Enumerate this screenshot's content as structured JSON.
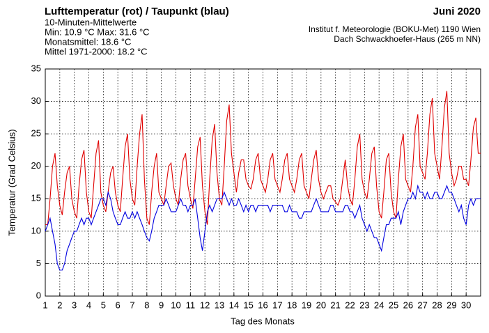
{
  "chart_data": {
    "type": "line",
    "title": "Lufttemperatur (rot) / Taupunkt (blau)",
    "subtitle": "10-Minuten-Mittelwerte",
    "stats": [
      "Min:  10.9 °C   Max:  31.6 °C",
      "Monatsmittel:  18.6 °C",
      "Mittel 1971-2000:  18.2 °C"
    ],
    "period": "Juni 2020",
    "source": [
      "Institut f. Meteorologie (BOKU-Met) 1190 Wien",
      "Dach Schwackhoefer-Haus (265 m NN)"
    ],
    "ylabel": "Temperatur (Grad Celsius)",
    "xlabel": "Tag des Monats",
    "xlim": [
      1,
      31
    ],
    "ylim": [
      0,
      35
    ],
    "xticks": [
      1,
      2,
      3,
      4,
      5,
      6,
      7,
      8,
      9,
      10,
      11,
      12,
      13,
      14,
      15,
      16,
      17,
      18,
      19,
      20,
      21,
      22,
      23,
      24,
      25,
      26,
      27,
      28,
      29,
      30
    ],
    "yticks": [
      0,
      5,
      10,
      15,
      20,
      25,
      30,
      35
    ],
    "grid": true,
    "x": [
      1,
      1.17,
      1.33,
      1.5,
      1.67,
      1.83,
      2,
      2.17,
      2.33,
      2.5,
      2.67,
      2.83,
      3,
      3.17,
      3.33,
      3.5,
      3.67,
      3.83,
      4,
      4.17,
      4.33,
      4.5,
      4.67,
      4.83,
      5,
      5.17,
      5.33,
      5.5,
      5.67,
      5.83,
      6,
      6.17,
      6.33,
      6.5,
      6.67,
      6.83,
      7,
      7.17,
      7.33,
      7.5,
      7.67,
      7.83,
      8,
      8.17,
      8.33,
      8.5,
      8.67,
      8.83,
      9,
      9.17,
      9.33,
      9.5,
      9.67,
      9.83,
      10,
      10.17,
      10.33,
      10.5,
      10.67,
      10.83,
      11,
      11.17,
      11.33,
      11.5,
      11.67,
      11.83,
      12,
      12.17,
      12.33,
      12.5,
      12.67,
      12.83,
      13,
      13.17,
      13.33,
      13.5,
      13.67,
      13.83,
      14,
      14.17,
      14.33,
      14.5,
      14.67,
      14.83,
      15,
      15.17,
      15.33,
      15.5,
      15.67,
      15.83,
      16,
      16.17,
      16.33,
      16.5,
      16.67,
      16.83,
      17,
      17.17,
      17.33,
      17.5,
      17.67,
      17.83,
      18,
      18.17,
      18.33,
      18.5,
      18.67,
      18.83,
      19,
      19.17,
      19.33,
      19.5,
      19.67,
      19.83,
      20,
      20.17,
      20.33,
      20.5,
      20.67,
      20.83,
      21,
      21.17,
      21.33,
      21.5,
      21.67,
      21.83,
      22,
      22.17,
      22.33,
      22.5,
      22.67,
      22.83,
      23,
      23.17,
      23.33,
      23.5,
      23.67,
      23.83,
      24,
      24.17,
      24.33,
      24.5,
      24.67,
      24.83,
      25,
      25.17,
      25.33,
      25.5,
      25.67,
      25.83,
      26,
      26.17,
      26.33,
      26.5,
      26.67,
      26.83,
      27,
      27.17,
      27.33,
      27.5,
      27.67,
      27.83,
      28,
      28.17,
      28.33,
      28.5,
      28.67,
      28.83,
      29,
      29.17,
      29.33,
      29.5,
      29.67,
      29.83,
      30,
      30.17,
      30.33,
      30.5,
      30.67,
      30.83,
      31
    ],
    "series": [
      {
        "color": "#e00000",
        "values": [
          11,
          11,
          15,
          20,
          22,
          17,
          14,
          12.5,
          16,
          19,
          20,
          15,
          13,
          12,
          17,
          21,
          22.5,
          16,
          13,
          12,
          17,
          22,
          24,
          16,
          14,
          13,
          16,
          19,
          20,
          16,
          14,
          13,
          18,
          23,
          25,
          18,
          15,
          14,
          20,
          25,
          28,
          18,
          12,
          11,
          16,
          20,
          22,
          16,
          15,
          14,
          17,
          20,
          20.5,
          17,
          15,
          14,
          18,
          21,
          22,
          17,
          15,
          13.5,
          18,
          23,
          24.5,
          17,
          13,
          11,
          18,
          24,
          26.5,
          19,
          15,
          14,
          20,
          27,
          29.5,
          22,
          19,
          16,
          19,
          21,
          21,
          18,
          17,
          16.5,
          18,
          21,
          22,
          18,
          17,
          16,
          18,
          21,
          22,
          18,
          17,
          16,
          18,
          21,
          22,
          18,
          17,
          16,
          18,
          21,
          22,
          17,
          16,
          15,
          18,
          21,
          22.5,
          18,
          16,
          15,
          16,
          17,
          17,
          15,
          14.5,
          14,
          15,
          18,
          21,
          17,
          15,
          14,
          18,
          23,
          25,
          18,
          16,
          15,
          18,
          22,
          23,
          17,
          13,
          12,
          16,
          21,
          22,
          16,
          13,
          12,
          18,
          23,
          25,
          18,
          17,
          16,
          20,
          26,
          28,
          20,
          19,
          18,
          22,
          28,
          30.5,
          22,
          20,
          18,
          23,
          29,
          31.6,
          22,
          19,
          17,
          18,
          20,
          20,
          18,
          18,
          17,
          21,
          26,
          27.5,
          22,
          22
        ]
      },
      {
        "color": "#0000e0",
        "values": [
          10,
          11,
          12,
          10,
          8,
          5,
          4,
          4,
          5,
          7,
          8,
          9,
          10,
          10,
          11,
          12,
          11,
          12,
          12,
          11,
          12,
          13,
          14,
          15,
          15,
          14,
          16,
          15,
          13,
          12,
          11,
          11,
          12,
          13,
          12,
          12,
          13,
          12,
          13,
          12,
          11,
          10,
          9,
          8.5,
          10,
          12,
          13,
          14,
          14,
          14,
          15,
          14,
          13,
          13,
          13,
          14,
          15,
          14,
          14,
          13,
          14,
          14,
          15,
          12,
          9,
          7,
          10,
          13,
          14,
          13,
          14,
          15,
          15,
          15,
          16,
          15,
          14,
          15,
          14,
          14,
          15,
          14,
          13,
          14,
          13,
          14,
          14,
          13,
          14,
          14,
          14,
          14,
          14,
          13,
          14,
          14,
          14,
          14,
          14,
          13,
          13,
          14,
          13,
          13,
          13,
          12,
          12,
          13,
          13,
          13,
          13,
          14,
          15,
          14,
          13,
          13,
          13,
          13,
          14,
          14,
          13,
          13,
          13,
          13,
          14,
          14,
          13,
          13,
          12,
          13,
          14,
          12,
          11,
          10,
          11,
          10,
          9,
          9,
          8,
          7,
          9,
          11,
          11,
          12,
          12,
          12,
          13,
          11,
          13,
          14,
          15,
          15,
          16,
          15,
          17,
          16,
          16,
          15,
          16,
          15,
          15,
          16,
          16,
          15,
          15,
          16,
          17,
          16,
          16,
          15,
          14,
          13,
          14,
          12,
          11,
          14,
          15,
          14,
          15,
          15,
          15
        ]
      }
    ]
  }
}
